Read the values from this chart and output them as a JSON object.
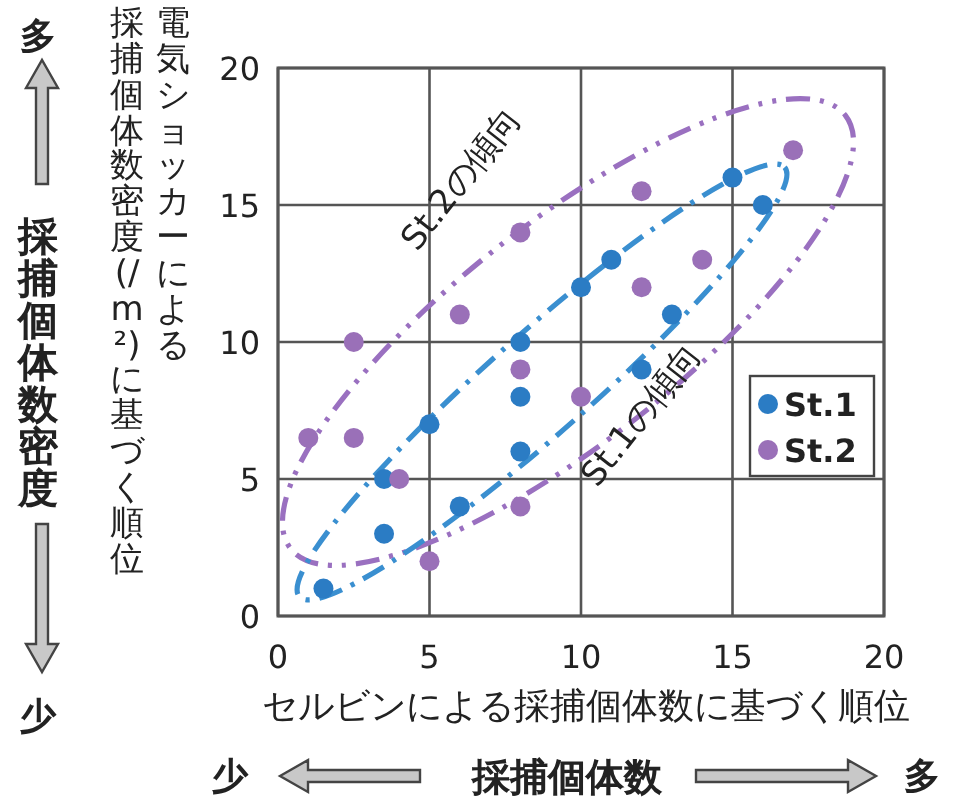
{
  "chart_data": {
    "type": "scatter",
    "xlabel": "セルビンによる採捕個体数に基づく順位",
    "ylabel": "電気ショッカーによる採捕個体数密度(/m²)に基づく順位",
    "xlim": [
      0,
      20
    ],
    "ylim": [
      0,
      20
    ],
    "xticks": [
      0,
      5,
      10,
      15,
      20
    ],
    "yticks": [
      0,
      5,
      10,
      15,
      20
    ],
    "grid": true,
    "legend": "right",
    "marker": "circle",
    "series": [
      {
        "name": "St.1",
        "color": "#2b7cc4",
        "x": [
          1.5,
          3.5,
          3.5,
          5,
          6,
          8,
          8,
          8,
          10,
          11,
          12,
          13,
          15,
          16
        ],
        "values": [
          1,
          3,
          5,
          7,
          4,
          10,
          8,
          6,
          12,
          13,
          9,
          11,
          16,
          15
        ]
      },
      {
        "name": "St.2",
        "color": "#9a70b8",
        "x": [
          1,
          2.5,
          2.5,
          4,
          5,
          6,
          8,
          8,
          8,
          10,
          12,
          12,
          14,
          17
        ],
        "values": [
          6.5,
          6.5,
          10,
          5,
          2,
          11,
          14,
          9,
          4,
          8,
          12,
          15.5,
          13,
          17
        ]
      }
    ],
    "annotations": [
      "St.2の傾向",
      "St.1の傾向",
      "多",
      "採捕個体数密度",
      "少",
      "少",
      "採捕個体数",
      "多"
    ]
  }
}
